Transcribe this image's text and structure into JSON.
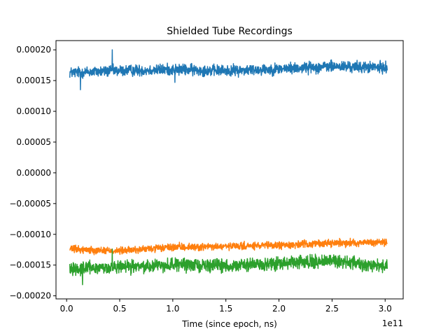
{
  "chart_data": {
    "type": "line",
    "title": "Shielded Tube Recordings",
    "xlabel": "Time (since epoch, ns)",
    "ylabel": "",
    "x_offset_label": "1e11",
    "xlim": [
      -0.1,
      3.17
    ],
    "ylim": [
      -0.000205,
      0.000215
    ],
    "x_ticks": [
      0.0,
      0.5,
      1.0,
      1.5,
      2.0,
      2.5,
      3.0
    ],
    "x_tick_labels": [
      "0.0",
      "0.5",
      "1.0",
      "1.5",
      "2.0",
      "2.5",
      "3.0"
    ],
    "y_ticks": [
      0.0002,
      0.00015,
      0.0001,
      5e-05,
      0.0,
      -5e-05,
      -0.0001,
      -0.00015,
      -0.0002
    ],
    "y_tick_labels": [
      "0.00020",
      "0.00015",
      "0.00010",
      "0.00005",
      "0.00000",
      "−0.00005",
      "−0.00010",
      "−0.00015",
      "−0.00020"
    ],
    "grid": false,
    "x_range": [
      0.03,
      3.02
    ],
    "series": [
      {
        "color": "#1f77b4",
        "trend_x": [
          0.03,
          0.5,
          1.0,
          1.5,
          2.0,
          2.5,
          3.02
        ],
        "trend_y": [
          0.000163,
          0.000166,
          0.000168,
          0.000166,
          0.000169,
          0.000173,
          0.000171
        ],
        "noise": 8.5e-06,
        "spikes": [
          {
            "x": 0.43,
            "y": 0.0002
          },
          {
            "x": 0.13,
            "y": 0.000135
          },
          {
            "x": 1.02,
            "y": 0.000147
          }
        ]
      },
      {
        "color": "#ff7f0e",
        "trend_x": [
          0.03,
          0.5,
          1.0,
          1.5,
          2.0,
          2.5,
          3.02
        ],
        "trend_y": [
          -0.000124,
          -0.000127,
          -0.000121,
          -0.00012,
          -0.000118,
          -0.000114,
          -0.000113
        ],
        "noise": 5.5e-06,
        "spikes": []
      },
      {
        "color": "#2ca02c",
        "trend_x": [
          0.03,
          0.5,
          1.0,
          1.5,
          2.0,
          2.5,
          3.02
        ],
        "trend_y": [
          -0.000155,
          -0.000154,
          -0.000149,
          -0.000151,
          -0.000148,
          -0.000143,
          -0.000152
        ],
        "noise": 9.5e-06,
        "spikes": [
          {
            "x": 0.43,
            "y": -0.000188
          },
          {
            "x": 0.43,
            "y": -0.000124
          },
          {
            "x": 0.15,
            "y": -0.000182
          }
        ]
      }
    ]
  }
}
